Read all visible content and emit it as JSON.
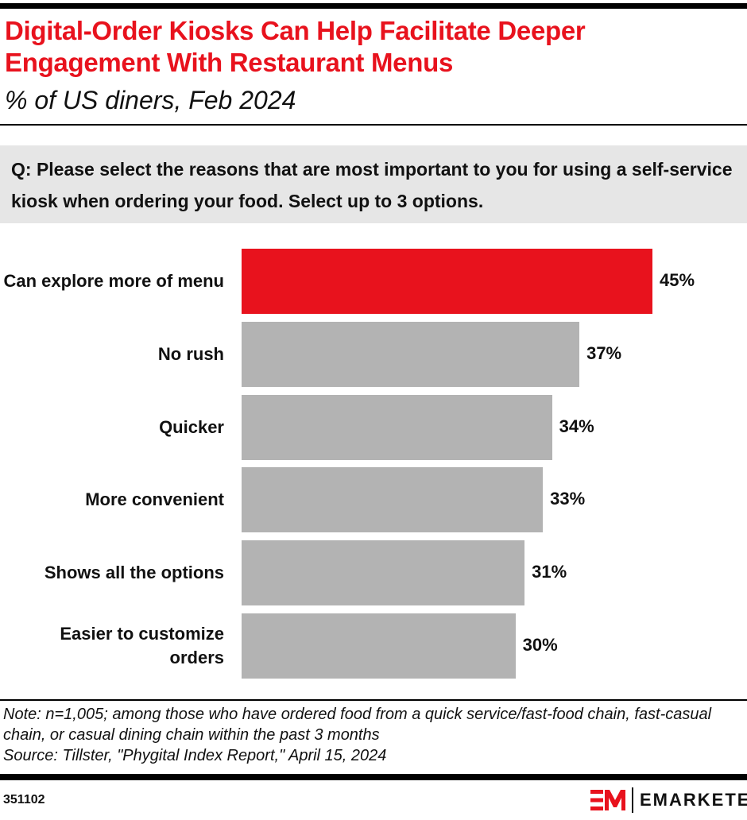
{
  "header": {
    "title": "Digital-Order Kiosks Can Help Facilitate Deeper Engagement With Restaurant Menus",
    "subtitle": "% of US diners, Feb 2024"
  },
  "question": "Q: Please select the reasons that are most important to you for using a self-service kiosk when ordering your food. Select up to 3 options.",
  "chart_data": {
    "type": "bar",
    "orientation": "horizontal",
    "categories": [
      "Can explore more of menu",
      "No rush",
      "Quicker",
      "More convenient",
      "Shows all the options",
      "Easier to customize orders"
    ],
    "values": [
      45,
      37,
      34,
      33,
      31,
      30
    ],
    "value_labels": [
      "45%",
      "37%",
      "34%",
      "33%",
      "31%",
      "30%"
    ],
    "colors": [
      "#e8121d",
      "#b3b3b3",
      "#b3b3b3",
      "#b3b3b3",
      "#b3b3b3",
      "#b3b3b3"
    ],
    "xlim": [
      0,
      45
    ],
    "grid": false
  },
  "footer": {
    "note": "Note: n=1,005; among those who have ordered food from a quick service/fast-food chain, fast-casual chain, or casual dining chain within the past 3 months",
    "source": "Source: Tillster, \"Phygital Index Report,\" April 15, 2024",
    "chart_id": "351102",
    "logo_text": "EMARKETER"
  }
}
